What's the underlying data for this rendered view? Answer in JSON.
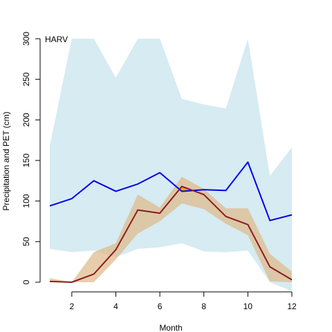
{
  "chart_data": {
    "type": "line",
    "title": "",
    "panel_label": "HARV",
    "xlabel": "Month",
    "ylabel": "Precipitation and PET (cm)",
    "xlim": [
      1,
      12
    ],
    "ylim": [
      0,
      300
    ],
    "x_ticks": [
      2,
      4,
      6,
      8,
      10,
      12
    ],
    "y_ticks": [
      0,
      50,
      100,
      150,
      200,
      250,
      300
    ],
    "grid": false,
    "legend": "none",
    "x": [
      1,
      2,
      3,
      4,
      5,
      6,
      7,
      8,
      9,
      10,
      11,
      12
    ],
    "series": [
      {
        "kind": "line",
        "color": "#0000EE",
        "values": [
          94,
          103,
          125,
          112,
          121,
          135,
          112,
          114,
          113,
          148,
          76,
          83
        ]
      },
      {
        "kind": "line",
        "color": "#8B1A1A",
        "values": [
          1,
          0,
          10,
          40,
          89,
          85,
          118,
          108,
          81,
          71,
          19,
          3
        ]
      }
    ],
    "bands": [
      {
        "kind": "band",
        "color": "#ADD8E6",
        "lower": [
          41,
          37,
          39,
          31,
          41,
          43,
          48,
          38,
          37,
          39,
          0,
          -11
        ],
        "upper": [
          168,
          300,
          300,
          252,
          300,
          300,
          226,
          219,
          214,
          300,
          131,
          166
        ]
      },
      {
        "kind": "band",
        "color": "#DEB887",
        "lower": [
          0,
          0,
          0,
          28,
          60,
          75,
          97,
          90,
          72,
          58,
          1,
          0
        ],
        "upper": [
          5,
          0,
          37,
          48,
          108,
          92,
          130,
          115,
          91,
          91,
          35,
          13
        ]
      }
    ],
    "highlight_color": "#FFA500"
  }
}
